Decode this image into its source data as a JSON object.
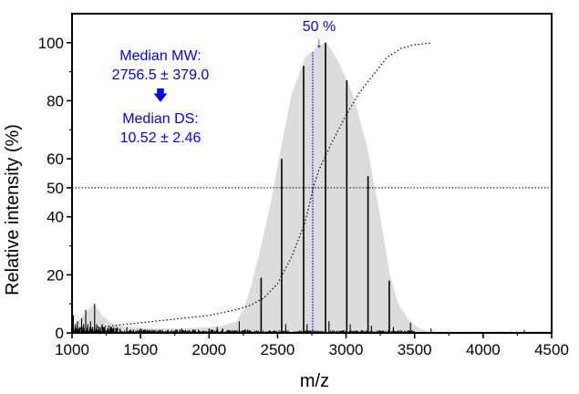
{
  "chart_data": {
    "type": "line",
    "title": "",
    "xlabel": "m/z",
    "ylabel": "Relative intensity (%)",
    "xlim": [
      1000,
      4500
    ],
    "ylim": [
      0,
      110
    ],
    "x_ticks": [
      1000,
      1500,
      2000,
      2500,
      3000,
      3500,
      4000,
      4500
    ],
    "x_tick_labels": [
      "1000",
      "1500",
      "2000",
      "2500",
      "3000",
      "3500",
      "4000",
      "4500"
    ],
    "y_ticks": [
      0,
      20,
      40,
      50,
      60,
      80,
      100
    ],
    "y_tick_labels": [
      "0",
      "20",
      "40",
      "50",
      "60",
      "80",
      "100"
    ],
    "grid": false,
    "series": [
      {
        "kind": "envelope",
        "color": "#dcdcdc",
        "x": [
          1000,
          1060,
          1120,
          1160,
          1220,
          1300,
          1400,
          1600,
          1800,
          2000,
          2100,
          2200,
          2250,
          2300,
          2380,
          2450,
          2530,
          2600,
          2700,
          2800,
          2860,
          2950,
          3050,
          3150,
          3250,
          3320,
          3380,
          3450,
          3520,
          3600,
          4500
        ],
        "y": [
          2,
          5,
          8,
          10,
          6,
          3,
          2,
          1.5,
          1.5,
          2,
          2.5,
          4,
          8,
          15,
          30,
          45,
          65,
          82,
          95,
          99,
          100,
          93,
          82,
          65,
          40,
          20,
          10,
          5,
          2,
          0.5,
          0.5
        ]
      },
      {
        "kind": "stick",
        "color": "#000000",
        "x": [
          1010,
          1025,
          1040,
          1055,
          1070,
          1085,
          1100,
          1115,
          1135,
          1150,
          1165,
          1180,
          1200,
          1220,
          1240,
          1260,
          1280,
          1300,
          1350,
          1400,
          1450,
          1500,
          1600,
          1700,
          1800,
          1900,
          2000,
          2060,
          2100,
          2220,
          2380,
          2530,
          2560,
          2690,
          2715,
          2850,
          2875,
          3005,
          3030,
          3160,
          3185,
          3315,
          3345,
          3470,
          3620,
          4300
        ],
        "y": [
          6,
          3,
          4,
          2,
          5,
          3,
          8,
          3,
          4,
          2,
          10,
          3,
          2,
          3,
          2,
          1.5,
          2,
          1.5,
          1.5,
          2,
          1,
          1.5,
          1,
          1,
          1.5,
          1,
          1.5,
          2,
          1.5,
          4,
          19,
          60,
          3,
          92,
          3,
          100,
          4,
          87,
          3,
          54,
          2.5,
          18,
          2,
          3.5,
          1.5,
          1
        ]
      },
      {
        "kind": "cumulative",
        "color": "#000000",
        "style": "dotted",
        "x": [
          1000,
          1200,
          1400,
          1600,
          1800,
          2000,
          2100,
          2200,
          2300,
          2400,
          2500,
          2600,
          2700,
          2760,
          2800,
          2900,
          3000,
          3100,
          3200,
          3300,
          3400,
          3500,
          3600,
          3630
        ],
        "y": [
          1,
          2,
          3,
          4,
          5,
          6,
          7,
          8,
          9.5,
          12,
          17,
          26,
          38,
          50,
          56,
          66,
          75,
          83,
          89,
          95,
          98,
          99.3,
          99.8,
          100
        ]
      }
    ],
    "reference_lines": [
      {
        "orientation": "horizontal",
        "value": 50,
        "color": "#000000",
        "style": "dotted"
      },
      {
        "orientation": "vertical",
        "value": 2756.5,
        "color": "#0000ff",
        "style": "dotted"
      }
    ],
    "annotations": {
      "percent_label": "50 %",
      "percent_arrow": "↓",
      "median_mw_label": "Median MW:",
      "median_mw_value": "2756.5 ± 379.0",
      "down_arrow": "🡇",
      "median_ds_label": "Median DS:",
      "median_ds_value": "10.52 ± 2.46",
      "color": "#0000ff"
    }
  }
}
